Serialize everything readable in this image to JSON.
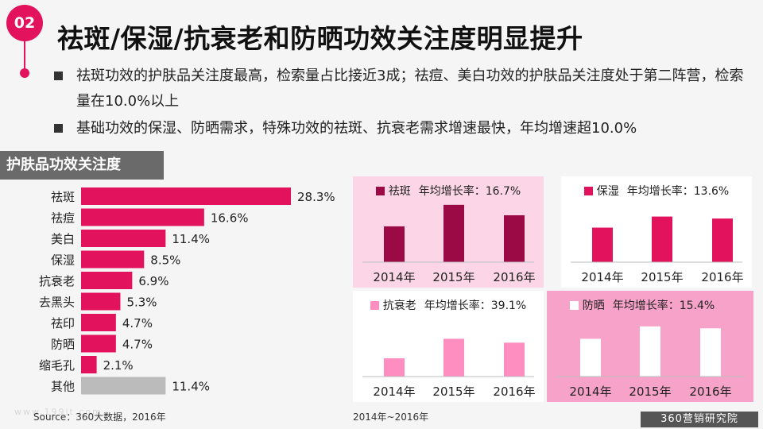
{
  "slide": {
    "number": "02",
    "title": "祛斑/保湿/抗衰老和防晒功效关注度明显提升",
    "bullets": [
      "祛斑功效的护肤品关注度最高，检索量占比接近3成；祛痘、美白功效的护肤品关注度处于第二阵营，检索量在10.0%以上",
      "基础功效的保湿、防晒需求，特殊功效的祛斑、抗衰老需求增速最快，年均增速超10.0%"
    ],
    "section_label": "护肤品功效关注度",
    "source_left": "Source：360大数据，2016年",
    "source_right": "2014年~2016年",
    "brand": "360营销研究院",
    "watermark": "www.199it.com"
  },
  "colors": {
    "accent": "#e2125c",
    "other_bar": "#bbbbbb",
    "panel1_bg": "#fcd6e6",
    "panel1_bar": "#9b0a44",
    "panel2_bg": "#ffffff",
    "panel2_bar": "#e2125c",
    "panel3_bg": "#ffffff",
    "panel3_bar": "#ff8ec0",
    "panel4_bg": "#f7a3c9",
    "panel4_bar": "#ffffff"
  },
  "chart_data": [
    {
      "type": "bar",
      "orientation": "horizontal",
      "title": "护肤品功效关注度",
      "categories": [
        "祛斑",
        "祛痘",
        "美白",
        "保湿",
        "抗衰老",
        "去黑头",
        "祛印",
        "防晒",
        "缩毛孔",
        "其他"
      ],
      "values": [
        28.3,
        16.6,
        11.4,
        8.5,
        6.9,
        5.3,
        4.7,
        4.7,
        2.1,
        11.4
      ],
      "labels": [
        "28.3%",
        "16.6%",
        "11.4%",
        "8.5%",
        "6.9%",
        "5.3%",
        "4.7%",
        "4.7%",
        "2.1%",
        "11.4%"
      ],
      "unit": "%",
      "xlim": [
        0,
        30
      ]
    },
    {
      "type": "bar",
      "series": [
        {
          "name": "祛斑",
          "values": [
            55,
            88,
            72
          ]
        }
      ],
      "legend_text": "祛斑",
      "rate_text": "年均增长率：16.7%",
      "categories": [
        "2014年",
        "2015年",
        "2016年"
      ],
      "ylim": [
        0,
        100
      ]
    },
    {
      "type": "bar",
      "series": [
        {
          "name": "保湿",
          "values": [
            53,
            70,
            67
          ]
        }
      ],
      "legend_text": "保湿",
      "rate_text": "年均增长率：13.6%",
      "categories": [
        "2014年",
        "2015年",
        "2016年"
      ],
      "ylim": [
        0,
        100
      ]
    },
    {
      "type": "bar",
      "series": [
        {
          "name": "抗衰老",
          "values": [
            28,
            58,
            52
          ]
        }
      ],
      "legend_text": "抗衰老",
      "rate_text": "年均增长率：39.1%",
      "categories": [
        "2014年",
        "2015年",
        "2016年"
      ],
      "ylim": [
        0,
        100
      ]
    },
    {
      "type": "bar",
      "series": [
        {
          "name": "防晒",
          "values": [
            58,
            77,
            74
          ]
        }
      ],
      "legend_text": "防晒",
      "rate_text": "年均增长率：15.4%",
      "categories": [
        "2014年",
        "2015年",
        "2016年"
      ],
      "ylim": [
        0,
        100
      ]
    }
  ]
}
